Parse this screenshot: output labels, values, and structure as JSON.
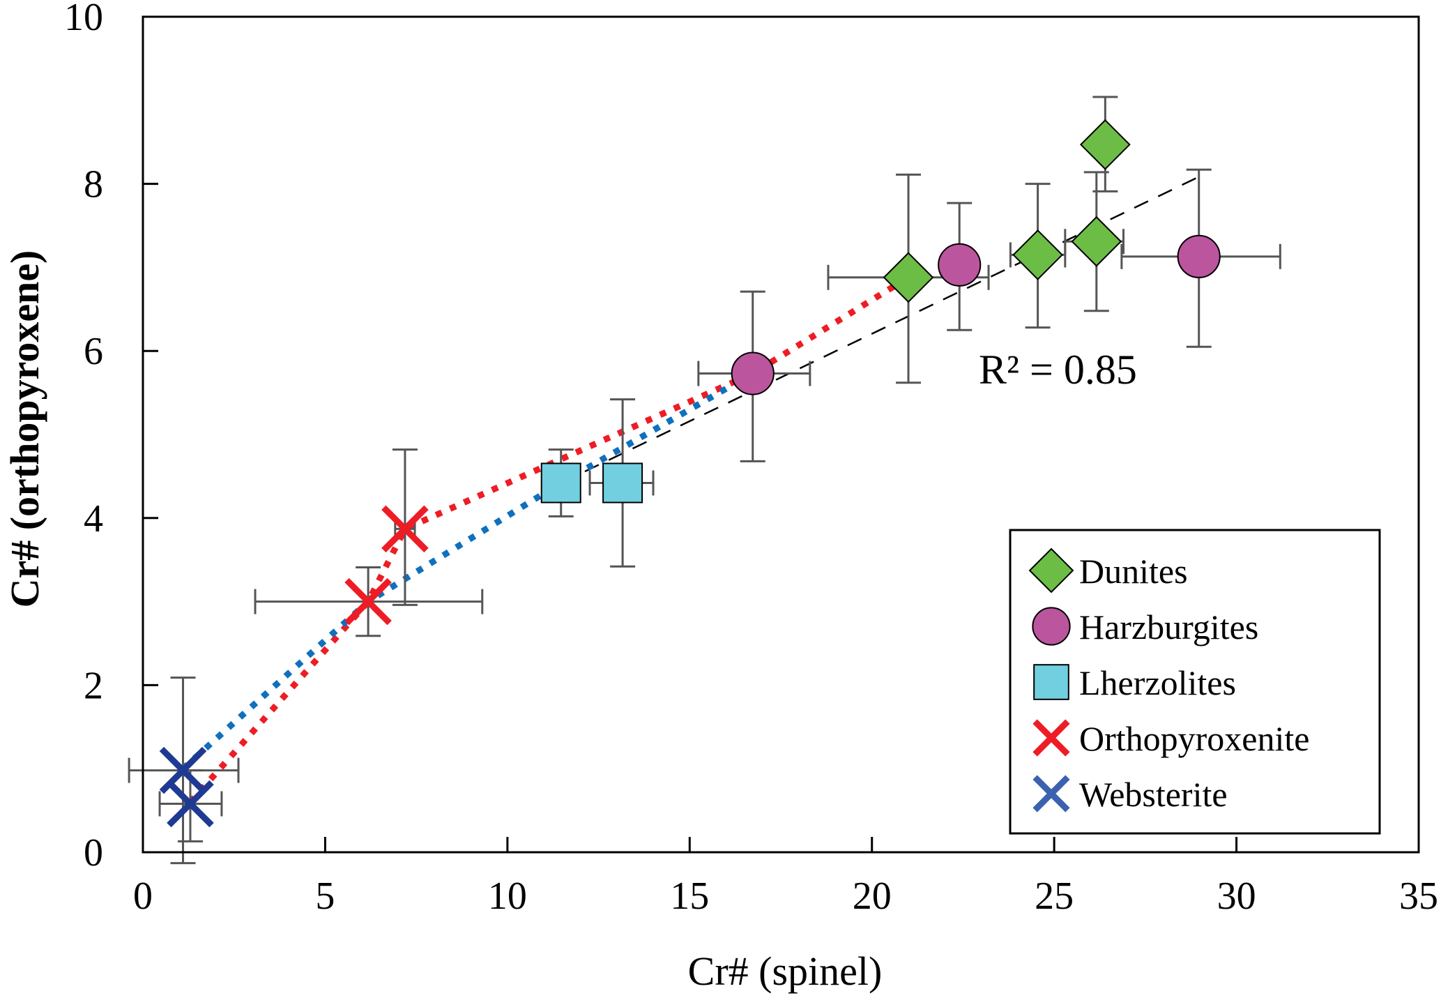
{
  "chart_data": {
    "type": "scatter",
    "title": "",
    "xlabel": "Cr# (spinel)",
    "ylabel": "Cr# (orthopyroxene)",
    "xlim": [
      0,
      35
    ],
    "ylim": [
      0,
      10
    ],
    "xticks": [
      0,
      5,
      10,
      15,
      20,
      25,
      30,
      35
    ],
    "yticks": [
      0,
      2,
      4,
      6,
      8,
      10
    ],
    "xtick_labels": [
      "0",
      "5",
      "10",
      "15",
      "20",
      "25",
      "30",
      "35"
    ],
    "ytick_labels": [
      "0",
      "2",
      "4",
      "6",
      "8",
      "10"
    ],
    "grid": false,
    "legend_position": "bottom-right",
    "series": [
      {
        "name": "Dunites",
        "marker": "diamond",
        "color": "#6cbd45",
        "points": [
          {
            "x": 21.0,
            "y": 6.88,
            "xerr": [
              18.8,
              23.2
            ],
            "yerr": [
              5.62,
              8.11
            ]
          },
          {
            "x": 24.55,
            "y": 7.15,
            "xerr": [
              23.8,
              25.3
            ],
            "yerr": [
              6.28,
              8.0
            ]
          },
          {
            "x": 26.4,
            "y": 8.47,
            "xerr": null,
            "yerr": [
              7.91,
              9.04
            ]
          },
          {
            "x": 26.16,
            "y": 7.31,
            "xerr": [
              25.3,
              26.9
            ],
            "yerr": [
              6.48,
              8.14
            ]
          }
        ]
      },
      {
        "name": "Harzburgites",
        "marker": "circle",
        "color": "#bb559e",
        "points": [
          {
            "x": 22.4,
            "y": 7.03,
            "xerr": null,
            "yerr": [
              6.25,
              7.77
            ]
          },
          {
            "x": 16.73,
            "y": 5.73,
            "xerr": [
              15.24,
              18.3
            ],
            "yerr": [
              4.68,
              6.71
            ]
          },
          {
            "x": 28.97,
            "y": 7.13,
            "xerr": [
              26.85,
              31.2
            ],
            "yerr": [
              6.05,
              8.17
            ]
          }
        ]
      },
      {
        "name": "Lherzolites",
        "marker": "square",
        "color": "#72cfdf",
        "points": [
          {
            "x": 11.47,
            "y": 4.42,
            "xerr": null,
            "yerr": [
              4.02,
              4.82
            ]
          },
          {
            "x": 13.16,
            "y": 4.42,
            "xerr": [
              12.26,
              14.0
            ],
            "yerr": [
              3.42,
              5.42
            ]
          }
        ]
      },
      {
        "name": "Orthopyroxenite",
        "marker": "x",
        "color": "#ee1c25",
        "points": [
          {
            "x": 7.19,
            "y": 3.87,
            "xerr": [
              6.92,
              7.46
            ],
            "yerr": [
              2.96,
              4.82
            ]
          },
          {
            "x": 6.18,
            "y": 3.0,
            "xerr": [
              3.08,
              9.31
            ],
            "yerr": [
              2.59,
              3.41
            ]
          }
        ]
      },
      {
        "name": "Websterite",
        "marker": "x",
        "color": "#1f3a93",
        "legend_color": "#3a62b0",
        "points": [
          {
            "x": 1.1,
            "y": 0.98,
            "xerr": [
              -0.38,
              2.62
            ],
            "yerr": [
              -0.13,
              2.09
            ]
          },
          {
            "x": 1.3,
            "y": 0.58,
            "xerr": [
              0.46,
              2.16
            ],
            "yerr": [
              0.13,
              0.98
            ]
          }
        ]
      }
    ],
    "trend_lines": [
      {
        "name": "regression",
        "style": "dashed",
        "color": "#000000",
        "points": [
          [
            11.47,
            4.42
          ],
          [
            29.0,
            8.09
          ]
        ],
        "annotation": "R² = 0.85",
        "annotation_at": [
          23.0,
          5.8
        ]
      },
      {
        "name": "orthopyroxenite-path",
        "style": "dotted",
        "color": "#ee1c25",
        "points": [
          [
            1.3,
            0.6
          ],
          [
            6.18,
            3.0
          ],
          [
            7.19,
            3.87
          ],
          [
            16.73,
            5.73
          ],
          [
            21.0,
            6.88
          ]
        ]
      },
      {
        "name": "websterite-path",
        "style": "dotted",
        "color": "#0f70be",
        "points": [
          [
            1.1,
            1.0
          ],
          [
            6.18,
            3.0
          ],
          [
            11.47,
            4.42
          ],
          [
            16.73,
            5.73
          ]
        ]
      }
    ],
    "errorbar_color": "#555555"
  }
}
